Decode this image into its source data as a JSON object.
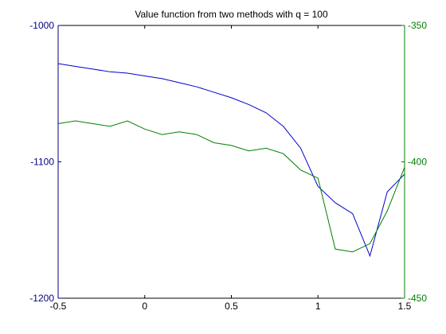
{
  "chart_data": {
    "type": "line",
    "title": "Value function from two methods with q = 100",
    "xlabel": "",
    "ylabel": "",
    "x": [
      -0.5,
      -0.4,
      -0.3,
      -0.2,
      -0.1,
      0.0,
      0.1,
      0.2,
      0.3,
      0.4,
      0.5,
      0.6,
      0.7,
      0.8,
      0.9,
      1.0,
      1.1,
      1.2,
      1.3,
      1.4,
      1.5
    ],
    "xlim": [
      -0.5,
      1.5
    ],
    "x_ticks": [
      "-0.5",
      "0",
      "0.5",
      "1",
      "1.5"
    ],
    "x_tick_values": [
      -0.5,
      0,
      0.5,
      1,
      1.5
    ],
    "grid": false,
    "axes": {
      "left": {
        "ylim": [
          -1200,
          -1000
        ],
        "ticks": [
          "-1000",
          "-1100",
          "-1200"
        ],
        "tick_values": [
          -1000,
          -1100,
          -1200
        ],
        "color": "#00007f"
      },
      "right": {
        "ylim": [
          -450,
          -350
        ],
        "ticks": [
          "-350",
          "-400",
          "-450"
        ],
        "tick_values": [
          -350,
          -400,
          -450
        ],
        "color": "#007f00"
      }
    },
    "series": [
      {
        "axis": "left",
        "color": "#0000cc",
        "values": [
          -1028,
          -1030,
          -1032,
          -1034,
          -1035,
          -1037,
          -1039,
          -1042,
          -1045,
          -1049,
          -1053,
          -1058,
          -1064,
          -1074,
          -1090,
          -1118,
          -1130,
          -1138,
          -1169,
          -1122,
          -1109
        ]
      },
      {
        "axis": "right",
        "color": "#008000",
        "values": [
          -386,
          -385,
          -386,
          -387,
          -385,
          -388,
          -390,
          -389,
          -390,
          -393,
          -394,
          -396,
          -395,
          -397,
          -403,
          -406,
          -432,
          -433,
          -430,
          -418,
          -402
        ]
      }
    ]
  }
}
